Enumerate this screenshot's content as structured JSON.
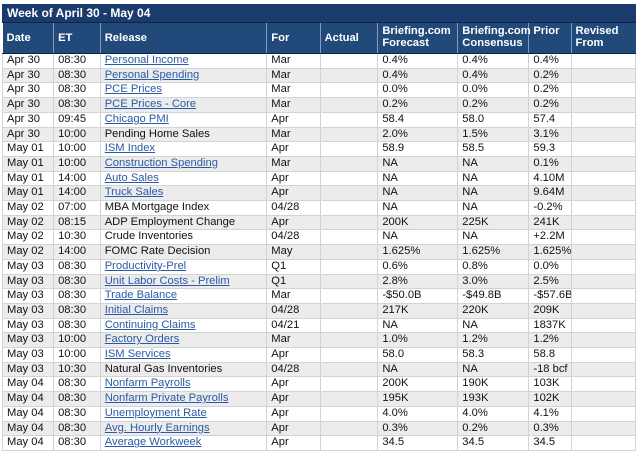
{
  "calendar": {
    "title": "Week of April 30 - May 04",
    "headers": {
      "date": "Date",
      "et": "ET",
      "release": "Release",
      "for": "For",
      "actual": "Actual",
      "forecast": "Briefing.com Forecast",
      "consensus": "Briefing.com Consensus",
      "prior": "Prior",
      "revised": "Revised From"
    },
    "rows": [
      {
        "date": "Apr 30",
        "et": "08:30",
        "release": "Personal Income",
        "link": true,
        "for": "Mar",
        "actual": "",
        "forecast": "0.4%",
        "consensus": "0.4%",
        "prior": "0.4%",
        "revised": ""
      },
      {
        "date": "Apr 30",
        "et": "08:30",
        "release": "Personal Spending",
        "link": true,
        "for": "Mar",
        "actual": "",
        "forecast": "0.4%",
        "consensus": "0.4%",
        "prior": "0.2%",
        "revised": ""
      },
      {
        "date": "Apr 30",
        "et": "08:30",
        "release": "PCE Prices",
        "link": true,
        "for": "Mar",
        "actual": "",
        "forecast": "0.0%",
        "consensus": "0.0%",
        "prior": "0.2%",
        "revised": ""
      },
      {
        "date": "Apr 30",
        "et": "08:30",
        "release": "PCE Prices - Core",
        "link": true,
        "for": "Mar",
        "actual": "",
        "forecast": "0.2%",
        "consensus": "0.2%",
        "prior": "0.2%",
        "revised": ""
      },
      {
        "date": "Apr 30",
        "et": "09:45",
        "release": "Chicago PMI",
        "link": true,
        "for": "Apr",
        "actual": "",
        "forecast": "58.4",
        "consensus": "58.0",
        "prior": "57.4",
        "revised": ""
      },
      {
        "date": "Apr 30",
        "et": "10:00",
        "release": "Pending Home Sales",
        "link": false,
        "for": "Mar",
        "actual": "",
        "forecast": "2.0%",
        "consensus": "1.5%",
        "prior": "3.1%",
        "revised": ""
      },
      {
        "date": "May 01",
        "et": "10:00",
        "release": "ISM Index",
        "link": true,
        "for": "Apr",
        "actual": "",
        "forecast": "58.9",
        "consensus": "58.5",
        "prior": "59.3",
        "revised": ""
      },
      {
        "date": "May 01",
        "et": "10:00",
        "release": "Construction Spending",
        "link": true,
        "for": "Mar",
        "actual": "",
        "forecast": "NA",
        "consensus": "NA",
        "prior": "0.1%",
        "revised": ""
      },
      {
        "date": "May 01",
        "et": "14:00",
        "release": "Auto Sales",
        "link": true,
        "for": "Apr",
        "actual": "",
        "forecast": "NA",
        "consensus": "NA",
        "prior": "4.10M",
        "revised": ""
      },
      {
        "date": "May 01",
        "et": "14:00",
        "release": "Truck Sales",
        "link": true,
        "for": "Apr",
        "actual": "",
        "forecast": "NA",
        "consensus": "NA",
        "prior": "9.64M",
        "revised": ""
      },
      {
        "date": "May 02",
        "et": "07:00",
        "release": "MBA Mortgage Index",
        "link": false,
        "for": "04/28",
        "actual": "",
        "forecast": "NA",
        "consensus": "NA",
        "prior": "-0.2%",
        "revised": ""
      },
      {
        "date": "May 02",
        "et": "08:15",
        "release": "ADP Employment Change",
        "link": false,
        "for": "Apr",
        "actual": "",
        "forecast": "200K",
        "consensus": "225K",
        "prior": "241K",
        "revised": ""
      },
      {
        "date": "May 02",
        "et": "10:30",
        "release": "Crude Inventories",
        "link": false,
        "for": "04/28",
        "actual": "",
        "forecast": "NA",
        "consensus": "NA",
        "prior": "+2.2M",
        "revised": ""
      },
      {
        "date": "May 02",
        "et": "14:00",
        "release": "FOMC Rate Decision",
        "link": false,
        "for": "May",
        "actual": "",
        "forecast": "1.625%",
        "consensus": "1.625%",
        "prior": "1.625%",
        "revised": ""
      },
      {
        "date": "May 03",
        "et": "08:30",
        "release": "Productivity-Prel",
        "link": true,
        "for": "Q1",
        "actual": "",
        "forecast": "0.6%",
        "consensus": "0.8%",
        "prior": "0.0%",
        "revised": ""
      },
      {
        "date": "May 03",
        "et": "08:30",
        "release": "Unit Labor Costs - Prelim",
        "link": true,
        "for": "Q1",
        "actual": "",
        "forecast": "2.8%",
        "consensus": "3.0%",
        "prior": "2.5%",
        "revised": ""
      },
      {
        "date": "May 03",
        "et": "08:30",
        "release": "Trade Balance",
        "link": true,
        "for": "Mar",
        "actual": "",
        "forecast": "-$50.0B",
        "consensus": "-$49.8B",
        "prior": "-$57.6B",
        "revised": ""
      },
      {
        "date": "May 03",
        "et": "08:30",
        "release": "Initial Claims",
        "link": true,
        "for": "04/28",
        "actual": "",
        "forecast": "217K",
        "consensus": "220K",
        "prior": "209K",
        "revised": ""
      },
      {
        "date": "May 03",
        "et": "08:30",
        "release": "Continuing Claims",
        "link": true,
        "for": "04/21",
        "actual": "",
        "forecast": "NA",
        "consensus": "NA",
        "prior": "1837K",
        "revised": ""
      },
      {
        "date": "May 03",
        "et": "10:00",
        "release": "Factory Orders",
        "link": true,
        "for": "Mar",
        "actual": "",
        "forecast": "1.0%",
        "consensus": "1.2%",
        "prior": "1.2%",
        "revised": ""
      },
      {
        "date": "May 03",
        "et": "10:00",
        "release": "ISM Services",
        "link": true,
        "for": "Apr",
        "actual": "",
        "forecast": "58.0",
        "consensus": "58.3",
        "prior": "58.8",
        "revised": ""
      },
      {
        "date": "May 03",
        "et": "10:30",
        "release": "Natural Gas Inventories",
        "link": false,
        "for": "04/28",
        "actual": "",
        "forecast": "NA",
        "consensus": "NA",
        "prior": "-18 bcf",
        "revised": ""
      },
      {
        "date": "May 04",
        "et": "08:30",
        "release": "Nonfarm Payrolls",
        "link": true,
        "for": "Apr",
        "actual": "",
        "forecast": "200K",
        "consensus": "190K",
        "prior": "103K",
        "revised": ""
      },
      {
        "date": "May 04",
        "et": "08:30",
        "release": "Nonfarm Private Payrolls",
        "link": true,
        "for": "Apr",
        "actual": "",
        "forecast": "195K",
        "consensus": "193K",
        "prior": "102K",
        "revised": ""
      },
      {
        "date": "May 04",
        "et": "08:30",
        "release": "Unemployment Rate",
        "link": true,
        "for": "Apr",
        "actual": "",
        "forecast": "4.0%",
        "consensus": "4.0%",
        "prior": "4.1%",
        "revised": ""
      },
      {
        "date": "May 04",
        "et": "08:30",
        "release": "Avg. Hourly Earnings",
        "link": true,
        "for": "Apr",
        "actual": "",
        "forecast": "0.3%",
        "consensus": "0.2%",
        "prior": "0.3%",
        "revised": ""
      },
      {
        "date": "May 04",
        "et": "08:30",
        "release": "Average Workweek",
        "link": true,
        "for": "Apr",
        "actual": "",
        "forecast": "34.5",
        "consensus": "34.5",
        "prior": "34.5",
        "revised": ""
      }
    ]
  },
  "colors": {
    "title_bar": "#1b3b6c",
    "header_bg": "#214979",
    "link": "#2a5aa6",
    "row_alt": "#ececec"
  }
}
